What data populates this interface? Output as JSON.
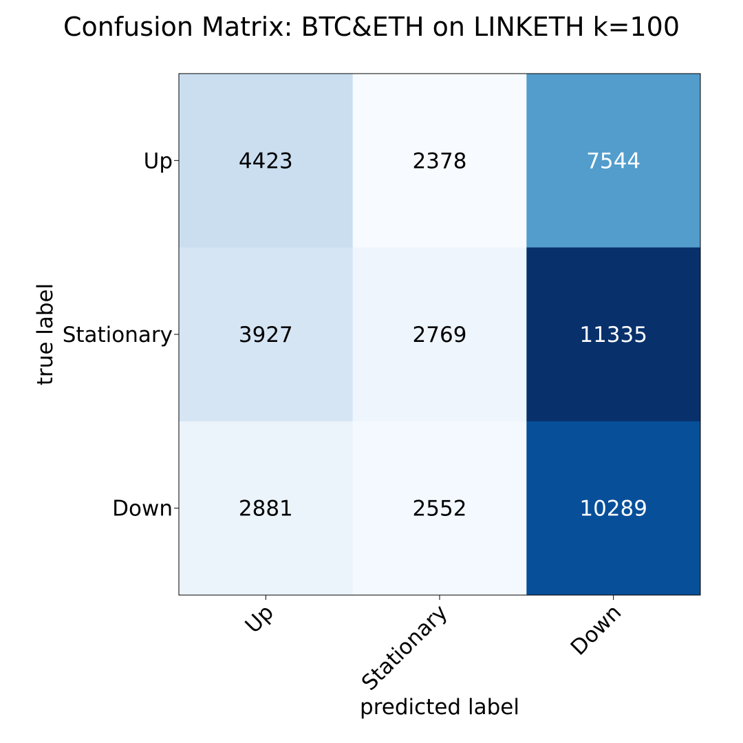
{
  "chart_data": {
    "type": "heatmap",
    "title": "Confusion Matrix: BTC&ETH on LINKETH k=100",
    "xlabel": "predicted label",
    "ylabel": "true label",
    "x_categories": [
      "Up",
      "Stationary",
      "Down"
    ],
    "y_categories": [
      "Up",
      "Stationary",
      "Down"
    ],
    "values": [
      [
        4423,
        2378,
        7544
      ],
      [
        3927,
        2769,
        11335
      ],
      [
        2881,
        2552,
        10289
      ]
    ],
    "colormap": "Blues",
    "color_range": [
      2378,
      11335
    ],
    "grid": false,
    "legend": "none"
  }
}
